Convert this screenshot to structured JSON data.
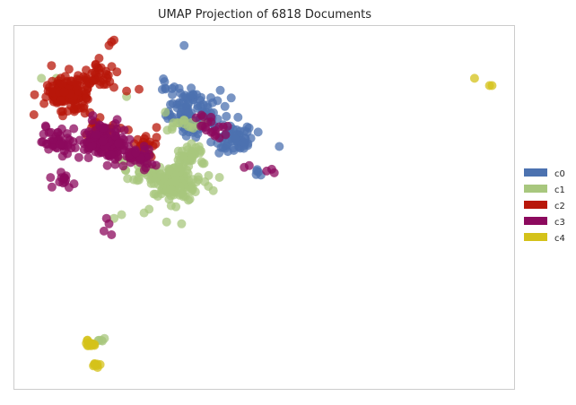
{
  "chart_data": {
    "type": "scatter",
    "title": "UMAP Projection of 6818 Documents",
    "xlabel": "",
    "ylabel": "",
    "grid": false,
    "legend_position": "right",
    "xlim": [
      0,
      100
    ],
    "ylim": [
      0,
      100
    ],
    "series": [
      {
        "name": "c0",
        "color": "#4c72b0",
        "clusters": [
          {
            "x": 36.0,
            "y": 76.0,
            "spread": 6.0,
            "n": 110
          },
          {
            "x": 44.0,
            "y": 69.0,
            "spread": 4.0,
            "n": 60
          },
          {
            "x": 31.5,
            "y": 82.5,
            "spread": 2.5,
            "n": 10
          },
          {
            "x": 48.5,
            "y": 59.5,
            "spread": 1.0,
            "n": 4
          }
        ],
        "points": [
          [
            34.0,
            94.5
          ],
          [
            48.5,
            60.0
          ]
        ]
      },
      {
        "name": "c1",
        "color": "#a8c77e",
        "clusters": [
          {
            "x": 32.0,
            "y": 57.0,
            "spread": 4.5,
            "n": 170
          },
          {
            "x": 35.0,
            "y": 64.0,
            "spread": 3.0,
            "n": 40
          },
          {
            "x": 25.0,
            "y": 60.0,
            "spread": 3.0,
            "n": 25
          },
          {
            "x": 34.0,
            "y": 72.5,
            "spread": 3.0,
            "n": 15
          },
          {
            "x": 17.0,
            "y": 13.5,
            "spread": 1.0,
            "n": 5
          }
        ],
        "points": [
          [
            5.5,
            85.5
          ],
          [
            26.0,
            48.5
          ],
          [
            27.0,
            49.5
          ],
          [
            20.0,
            47.0
          ],
          [
            21.5,
            48.0
          ],
          [
            30.5,
            46.0
          ],
          [
            33.5,
            45.5
          ],
          [
            22.5,
            80.5
          ],
          [
            38.0,
            73.0
          ],
          [
            8.5,
            85.5
          ]
        ]
      },
      {
        "name": "c2",
        "color": "#b8170a",
        "clusters": [
          {
            "x": 10.5,
            "y": 81.0,
            "spread": 4.0,
            "n": 150
          },
          {
            "x": 17.0,
            "y": 86.0,
            "spread": 3.0,
            "n": 35
          },
          {
            "x": 18.0,
            "y": 70.0,
            "spread": 3.5,
            "n": 40
          },
          {
            "x": 26.0,
            "y": 67.0,
            "spread": 2.5,
            "n": 20
          }
        ],
        "points": [
          [
            19.0,
            94.5
          ],
          [
            19.5,
            95.5
          ],
          [
            20.0,
            96.0
          ],
          [
            17.0,
            91.0
          ],
          [
            22.5,
            82.0
          ],
          [
            25.0,
            82.5
          ],
          [
            28.5,
            72.0
          ],
          [
            7.5,
            89.0
          ],
          [
            11.0,
            88.0
          ],
          [
            4.0,
            75.5
          ]
        ]
      },
      {
        "name": "c3",
        "color": "#8c0a5e",
        "clusters": [
          {
            "x": 18.0,
            "y": 68.0,
            "spread": 4.5,
            "n": 140
          },
          {
            "x": 9.0,
            "y": 68.0,
            "spread": 3.0,
            "n": 45
          },
          {
            "x": 25.0,
            "y": 64.0,
            "spread": 3.0,
            "n": 40
          },
          {
            "x": 9.5,
            "y": 58.0,
            "spread": 2.0,
            "n": 12
          },
          {
            "x": 40.0,
            "y": 72.0,
            "spread": 3.5,
            "n": 20
          }
        ],
        "points": [
          [
            18.5,
            47.0
          ],
          [
            18.0,
            43.5
          ],
          [
            19.0,
            45.5
          ],
          [
            19.5,
            42.5
          ],
          [
            46.0,
            61.0
          ],
          [
            47.0,
            61.5
          ],
          [
            51.5,
            60.5
          ],
          [
            50.5,
            60.0
          ],
          [
            52.0,
            59.5
          ],
          [
            11.0,
            55.5
          ],
          [
            12.0,
            56.5
          ]
        ]
      },
      {
        "name": "c4",
        "color": "#d4c21a",
        "clusters": [
          {
            "x": 15.5,
            "y": 12.5,
            "spread": 1.0,
            "n": 12
          },
          {
            "x": 16.5,
            "y": 6.5,
            "spread": 0.8,
            "n": 8
          }
        ],
        "points": [
          [
            92.0,
            85.5
          ],
          [
            95.0,
            83.5
          ],
          [
            95.5,
            83.5
          ]
        ]
      }
    ]
  }
}
